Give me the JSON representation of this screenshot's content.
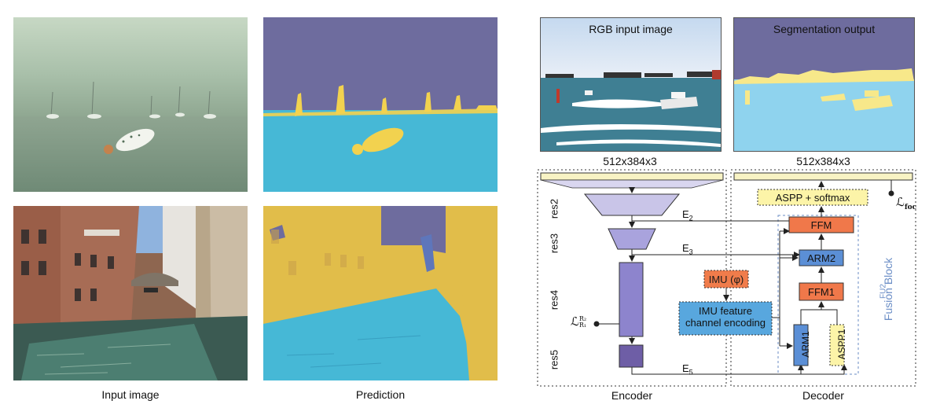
{
  "left_panel": {
    "caption_input": "Input image",
    "caption_prediction": "Prediction"
  },
  "diagram": {
    "rgb_input_label": "RGB input image",
    "segmentation_output_label": "Segmentation output",
    "input_dims": "512x384x3",
    "output_dims": "512x384x3",
    "res_labels": [
      "res2",
      "res3",
      "res4",
      "res5"
    ],
    "e2": "E",
    "e2_sub": "2",
    "e3": "E",
    "e3_sub": "3",
    "e5": "E",
    "e5_sub": "5",
    "imu_label": "IMU (φ)",
    "imu_encoding_line1": "IMU feature",
    "imu_encoding_line2": "channel encoding",
    "aspp_softmax": "ASPP + softmax",
    "ffm": "FFM",
    "arm2": "ARM2",
    "ffm1": "FFM1",
    "arm1": "ARM1",
    "aspp1": "ASPP1",
    "fusion_block": "Fusion Block",
    "fusion_sub": "FU2",
    "loss_focal_main": "ℒ",
    "loss_focal_sub": "foc",
    "loss_r_main": "ℒ",
    "loss_r_sup": "R₂",
    "loss_r_sub": "R₁",
    "encoder_label": "Encoder",
    "decoder_label": "Decoder"
  },
  "colors": {
    "water": "#46b8d6",
    "sky": "#6e6c9e",
    "obstacle": "#f2d24f",
    "imu_orange": "#f07c4b",
    "ffm_orange": "#f0784a",
    "arm_blue": "#5b8fd6",
    "aspp_yellow": "#fcf4a8",
    "encoding_blue": "#58a7de",
    "enc_light": "#c9c5e8",
    "enc_mid": "#a9a3dd",
    "enc_dark": "#8d84cd",
    "enc_darkest": "#6e5ea6",
    "fusion_label": "#6b8ec6"
  }
}
